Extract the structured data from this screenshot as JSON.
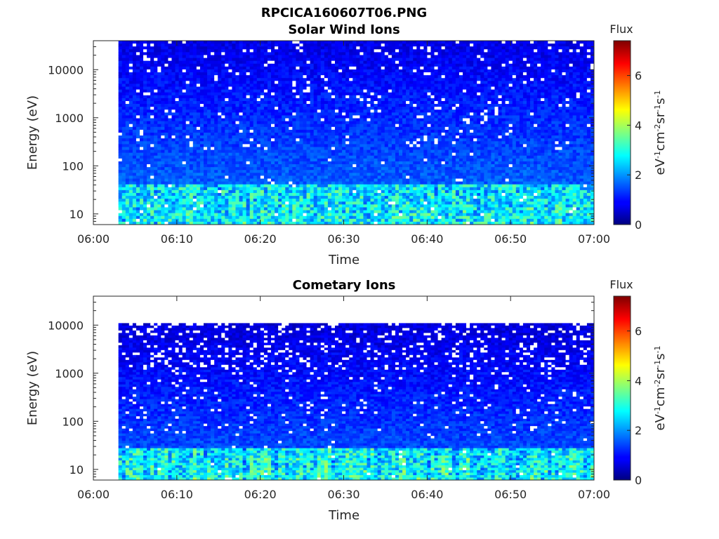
{
  "figure": {
    "title": "RPCICA160607T06.PNG"
  },
  "chart_data": [
    {
      "type": "heatmap",
      "title": "Solar Wind Ions",
      "xlabel": "Time",
      "ylabel": "Energy (eV)",
      "x_ticks": [
        "06:00",
        "06:10",
        "06:20",
        "06:30",
        "06:40",
        "06:50",
        "07:00"
      ],
      "y_ticks": [
        "10",
        "100",
        "1000",
        "10000"
      ],
      "y_scale": "log",
      "ylim": [
        6,
        40000
      ],
      "xlim": [
        "06:00",
        "07:00"
      ],
      "data_time_range": [
        "06:03",
        "07:00"
      ],
      "data_energy_range": [
        6,
        40000
      ],
      "colorbar": {
        "label": "Flux",
        "unit_label": "eV-1cm-2sr-1s-1",
        "ticks": [
          "0",
          "2",
          "4",
          "6"
        ],
        "range": [
          0,
          7.4
        ],
        "colormap": "jet"
      }
    },
    {
      "type": "heatmap",
      "title": "Cometary Ions",
      "xlabel": "Time",
      "ylabel": "Energy (eV)",
      "x_ticks": [
        "06:00",
        "06:10",
        "06:20",
        "06:30",
        "06:40",
        "06:50",
        "07:00"
      ],
      "y_ticks": [
        "10",
        "100",
        "1000",
        "10000"
      ],
      "y_scale": "log",
      "ylim": [
        6,
        40000
      ],
      "xlim": [
        "06:00",
        "07:00"
      ],
      "data_time_range": [
        "06:03",
        "07:00"
      ],
      "data_energy_range": [
        6,
        11000
      ],
      "colorbar": {
        "label": "Flux",
        "unit_label": "eV-1cm-2sr-1s-1",
        "ticks": [
          "0",
          "2",
          "4",
          "6"
        ],
        "range": [
          0,
          7.4
        ],
        "colormap": "jet"
      }
    }
  ]
}
